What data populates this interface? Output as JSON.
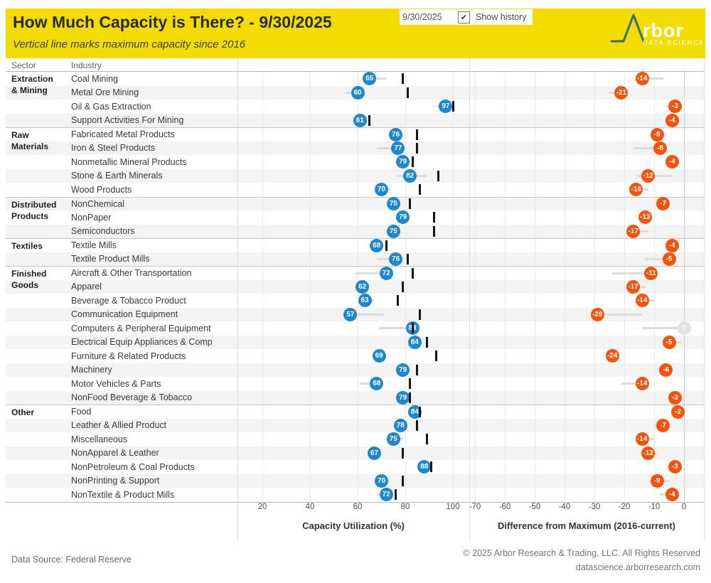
{
  "header": {
    "title": "How Much Capacity is There? - 9/30/2025",
    "subtitle": "Vertical line marks maximum capacity since 2016",
    "background": "#f4db00"
  },
  "controls": {
    "date_value": "9/30/2025",
    "checkbox_checked": true,
    "checkbox_glyph": "✔",
    "show_history_label": "Show history"
  },
  "logo": {
    "brand_text": "rbor",
    "tagline": "DATA SCIENCE",
    "mark_color": "#3a6b80",
    "text_color": "#ffffff"
  },
  "table": {
    "sector_header": "Sector",
    "industry_header": "Industry"
  },
  "colors": {
    "utilization_dot": "#1e87cd",
    "difference_dot": "#f4530b",
    "zero_dot": "#e2e2e2",
    "max_tick": "#151515",
    "history_whisker": "#dcdcdc",
    "band": "#f3f3f3"
  },
  "chart_data": {
    "type": "scatter",
    "subtype": "dot-plot with maximum tick and history whisker, two aligned panels",
    "panels": [
      {
        "name": "utilization",
        "axis_title": "Capacity Utilization (%)",
        "axis_ticks": [
          20,
          40,
          60,
          80,
          100
        ],
        "xlim": [
          9.5,
          107
        ]
      },
      {
        "name": "difference",
        "axis_title": "Difference from Maximum (2016-current)",
        "axis_ticks": [
          -70,
          -60,
          -50,
          -40,
          -30,
          -20,
          -10,
          0
        ],
        "xlim": [
          -72,
          6.7
        ]
      }
    ],
    "sectors": [
      {
        "name": "Extraction & Mining",
        "industries": [
          {
            "name": "Coal Mining",
            "utilization": 65,
            "difference": -14,
            "max_since_2016": 79,
            "util_history": [
              65,
              72
            ],
            "diff_history": [
              -14,
              -7
            ]
          },
          {
            "name": "Metal Ore Mining",
            "utilization": 60,
            "difference": -21,
            "max_since_2016": 81,
            "util_history": [
              55,
              60
            ],
            "diff_history": [
              -25,
              -21
            ]
          },
          {
            "name": "Oil & Gas Extraction",
            "utilization": 97,
            "difference": -3,
            "max_since_2016": 100,
            "util_history": [
              93,
              97
            ],
            "diff_history": [
              -6,
              -3
            ]
          },
          {
            "name": "Support Activities For Mining",
            "utilization": 61,
            "difference": -4,
            "max_since_2016": 65,
            "util_history": [
              61,
              61
            ],
            "diff_history": [
              -4,
              -4
            ]
          }
        ]
      },
      {
        "name": "Raw Materials",
        "industries": [
          {
            "name": "Fabricated Metal Products",
            "utilization": 76,
            "difference": -9,
            "max_since_2016": 85,
            "util_history": [
              76,
              76
            ],
            "diff_history": [
              -9,
              -7
            ]
          },
          {
            "name": "Iron & Steel Products",
            "utilization": 77,
            "difference": -8,
            "max_since_2016": 85,
            "util_history": [
              68,
              77
            ],
            "diff_history": [
              -17,
              -8
            ]
          },
          {
            "name": "Nonmetallic Mineral Products",
            "utilization": 79,
            "difference": -4,
            "max_since_2016": 83,
            "util_history": [
              79,
              79
            ],
            "diff_history": [
              -4,
              -2
            ]
          },
          {
            "name": "Stone & Earth Minerals",
            "utilization": 82,
            "difference": -12,
            "max_since_2016": 94,
            "util_history": [
              76,
              89
            ],
            "diff_history": [
              -16,
              -4
            ]
          },
          {
            "name": "Wood Products",
            "utilization": 70,
            "difference": -16,
            "max_since_2016": 86,
            "util_history": [
              70,
              74
            ],
            "diff_history": [
              -16,
              -12
            ]
          }
        ]
      },
      {
        "name": "Distributed Products",
        "industries": [
          {
            "name": "NonChemical",
            "utilization": 75,
            "difference": -7,
            "max_since_2016": 82,
            "util_history": [
              75,
              75
            ],
            "diff_history": [
              -7,
              -5
            ]
          },
          {
            "name": "NonPaper",
            "utilization": 79,
            "difference": -13,
            "max_since_2016": 92,
            "util_history": [
              79,
              79
            ],
            "diff_history": [
              -13,
              -11
            ]
          },
          {
            "name": "Semiconductors",
            "utilization": 75,
            "difference": -17,
            "max_since_2016": 92,
            "util_history": [
              75,
              77
            ],
            "diff_history": [
              -17,
              -12
            ]
          }
        ]
      },
      {
        "name": "Textiles",
        "industries": [
          {
            "name": "Textile Mills",
            "utilization": 68,
            "difference": -4,
            "max_since_2016": 72,
            "util_history": [
              68,
              68
            ],
            "diff_history": [
              -4,
              -2
            ]
          },
          {
            "name": "Textile Product Mills",
            "utilization": 76,
            "difference": -5,
            "max_since_2016": 81,
            "util_history": [
              68,
              76
            ],
            "diff_history": [
              -13,
              -5
            ]
          }
        ]
      },
      {
        "name": "Finished Goods",
        "industries": [
          {
            "name": "Aircraft & Other Transportation",
            "utilization": 72,
            "difference": -11,
            "max_since_2016": 83,
            "util_history": [
              59,
              72
            ],
            "diff_history": [
              -24,
              -11
            ]
          },
          {
            "name": "Apparel",
            "utilization": 62,
            "difference": -17,
            "max_since_2016": 79,
            "util_history": [
              62,
              64
            ],
            "diff_history": [
              -17,
              -13
            ]
          },
          {
            "name": "Beverage & Tobacco Product",
            "utilization": 63,
            "difference": -14,
            "max_since_2016": 77,
            "util_history": [
              63,
              67
            ],
            "diff_history": [
              -14,
              -10
            ]
          },
          {
            "name": "Communication Equipment",
            "utilization": 57,
            "difference": -29,
            "max_since_2016": 86,
            "util_history": [
              57,
              71
            ],
            "diff_history": [
              -29,
              -14
            ]
          },
          {
            "name": "Computers & Peripheral Equipment",
            "utilization": 83,
            "difference": 0,
            "max_since_2016": 83,
            "util_history": [
              69,
              83
            ],
            "diff_history": [
              -14,
              0
            ]
          },
          {
            "name": "Electrical Equip Appliances & Comp",
            "utilization": 84,
            "difference": -5,
            "max_since_2016": 89,
            "util_history": [
              84,
              86
            ],
            "diff_history": [
              -5,
              -1
            ]
          },
          {
            "name": "Furniture & Related Products",
            "utilization": 69,
            "difference": -24,
            "max_since_2016": 93,
            "util_history": [
              69,
              69
            ],
            "diff_history": [
              -24,
              -24
            ]
          },
          {
            "name": "Machinery",
            "utilization": 79,
            "difference": -6,
            "max_since_2016": 85,
            "util_history": [
              79,
              79
            ],
            "diff_history": [
              -8,
              -6
            ]
          },
          {
            "name": "Motor Vehicles & Parts",
            "utilization": 68,
            "difference": -14,
            "max_since_2016": 82,
            "util_history": [
              61,
              68
            ],
            "diff_history": [
              -21,
              -14
            ]
          },
          {
            "name": "NonFood Beverage & Tobacco",
            "utilization": 79,
            "difference": -3,
            "max_since_2016": 82,
            "util_history": [
              79,
              79
            ],
            "diff_history": [
              -5,
              -3
            ]
          }
        ]
      },
      {
        "name": "Other",
        "industries": [
          {
            "name": "Food",
            "utilization": 84,
            "difference": -2,
            "max_since_2016": 86,
            "util_history": [
              84,
              87
            ],
            "diff_history": [
              -2,
              -2
            ]
          },
          {
            "name": "Leather & Allied Product",
            "utilization": 78,
            "difference": -7,
            "max_since_2016": 85,
            "util_history": [
              75,
              78
            ],
            "diff_history": [
              -10,
              -7
            ]
          },
          {
            "name": "Miscellaneous",
            "utilization": 75,
            "difference": -14,
            "max_since_2016": 89,
            "util_history": [
              75,
              79
            ],
            "diff_history": [
              -14,
              -10
            ]
          },
          {
            "name": "NonApparel & Leather",
            "utilization": 67,
            "difference": -12,
            "max_since_2016": 79,
            "util_history": [
              67,
              67
            ],
            "diff_history": [
              -12,
              -9
            ]
          },
          {
            "name": "NonPetroleum & Coal Products",
            "utilization": 88,
            "difference": -3,
            "max_since_2016": 91,
            "util_history": [
              88,
              88
            ],
            "diff_history": [
              -3,
              -1
            ]
          },
          {
            "name": "NonPrinting & Support",
            "utilization": 70,
            "difference": -9,
            "max_since_2016": 79,
            "util_history": [
              70,
              73
            ],
            "diff_history": [
              -9,
              -5
            ]
          },
          {
            "name": "NonTextile & Product Mills",
            "utilization": 72,
            "difference": -4,
            "max_since_2016": 76,
            "util_history": [
              68,
              72
            ],
            "diff_history": [
              -8,
              -4
            ]
          }
        ]
      }
    ]
  },
  "footer": {
    "source": "Data Source: Federal Reserve",
    "copyright": "© 2025 Arbor Research & Trading, LLC. All Rights Reserved",
    "website": "datascience.arborresearch.com"
  }
}
